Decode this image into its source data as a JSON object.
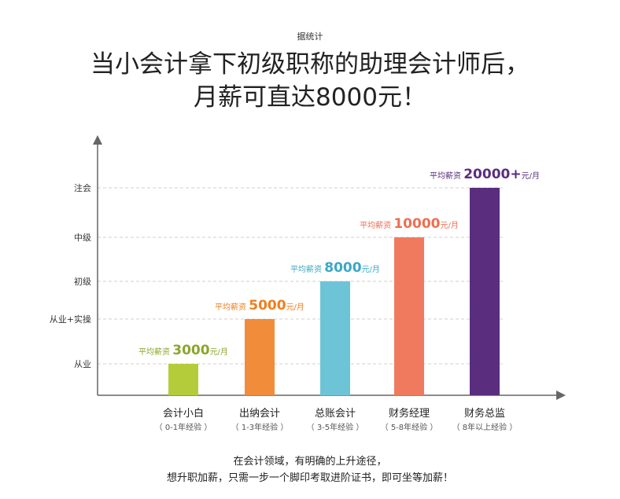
{
  "source_text": "据统计",
  "title_line1": "当小会计拿下初级职称的助理会计师后，",
  "title_line2": "月薪可直达8000元！",
  "footer_line1": "在会计领域，有明确的上升途径，",
  "footer_line2": "想升职加薪，只需一步一个脚印考取进阶证书，即可坐等加薪！",
  "chart_data": {
    "type": "bar",
    "categories": [
      "会计小白",
      "出纳会计",
      "总账会计",
      "财务经理",
      "财务总监"
    ],
    "experience": [
      "（ 0-1年经验 ）",
      "（ 1-3年经验 ）",
      "（ 3-5年经验 ）",
      "（ 5-8年经验 ）",
      "（ 8年以上经验 ）"
    ],
    "values": [
      3000,
      5000,
      8000,
      10000,
      20000
    ],
    "value_labels": [
      "3000",
      "5000",
      "8000",
      "10000",
      "20000+"
    ],
    "label_prefix": "平均薪资",
    "label_suffix": "元/月",
    "colors": [
      "#b5cc3a",
      "#f08c3a",
      "#6cc4d6",
      "#ef7a5e",
      "#5a2d7e"
    ],
    "label_colors": [
      "#8aa62a",
      "#ef7f1d",
      "#3aa8c4",
      "#ef6e50",
      "#5a2d7e"
    ],
    "y_levels": [
      "从业",
      "从业+实操",
      "初级",
      "中级",
      "注会"
    ],
    "grid": "dashed"
  }
}
